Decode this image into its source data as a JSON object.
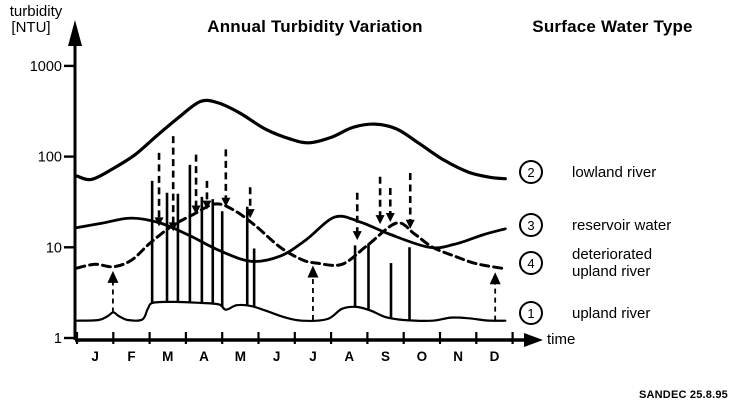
{
  "title": "Annual Turbidity Variation",
  "legend_title": "Surface Water Type",
  "credit": "SANDEC 25.8.95",
  "colors": {
    "ink": "#000000",
    "background": "#ffffff"
  },
  "y_axis": {
    "title_line1": "turbidity",
    "title_line2": "[NTU]",
    "tick_labels": [
      "1000",
      "100",
      "10",
      "1"
    ]
  },
  "x_axis": {
    "label": "time",
    "months": [
      "J",
      "F",
      "M",
      "A",
      "M",
      "J",
      "J",
      "A",
      "S",
      "O",
      "N",
      "D"
    ]
  },
  "legend": [
    {
      "number": "2",
      "label_lines": [
        "lowland river"
      ]
    },
    {
      "number": "3",
      "label_lines": [
        "reservoir water"
      ]
    },
    {
      "number": "4",
      "label_lines": [
        "deteriorated",
        "upland river"
      ]
    },
    {
      "number": "1",
      "label_lines": [
        "upland river"
      ]
    }
  ],
  "chart_data": {
    "type": "line",
    "title": "Annual Turbidity Variation",
    "xlabel": "time",
    "ylabel": "turbidity [NTU]",
    "y_scale": "log",
    "ylim": [
      1,
      1000
    ],
    "x_unit": "month (0 = start of January, 12 = end of December)",
    "series": [
      {
        "id": "2",
        "name": "lowland river",
        "style": "solid",
        "width": 3.2,
        "points": [
          [
            0,
            61
          ],
          [
            0.4,
            56
          ],
          [
            1,
            74
          ],
          [
            1.6,
            105
          ],
          [
            2.2,
            170
          ],
          [
            2.8,
            270
          ],
          [
            3.4,
            405
          ],
          [
            3.9,
            390
          ],
          [
            4.5,
            300
          ],
          [
            5.2,
            200
          ],
          [
            5.9,
            155
          ],
          [
            6.4,
            142
          ],
          [
            7,
            163
          ],
          [
            7.6,
            210
          ],
          [
            8.2,
            228
          ],
          [
            8.8,
            202
          ],
          [
            9.4,
            142
          ],
          [
            10.1,
            92
          ],
          [
            10.8,
            67
          ],
          [
            11.4,
            59
          ],
          [
            11.8,
            57
          ]
        ]
      },
      {
        "id": "3",
        "name": "reservoir water",
        "style": "solid",
        "width": 2.8,
        "points": [
          [
            0,
            16.5
          ],
          [
            0.7,
            18.5
          ],
          [
            1.5,
            21
          ],
          [
            2.3,
            18.5
          ],
          [
            3.1,
            13.5
          ],
          [
            3.9,
            9.3
          ],
          [
            4.8,
            7
          ],
          [
            5.6,
            8
          ],
          [
            6.3,
            12
          ],
          [
            7.1,
            21.5
          ],
          [
            7.8,
            19
          ],
          [
            8.6,
            14
          ],
          [
            9.7,
            10
          ],
          [
            10.4,
            10.8
          ],
          [
            11.2,
            13.8
          ],
          [
            11.8,
            16
          ]
        ]
      },
      {
        "id": "4",
        "name": "deteriorated upland river",
        "style": "dashed",
        "width": 3,
        "points": [
          [
            0,
            5.9
          ],
          [
            0.5,
            6.5
          ],
          [
            1,
            6.1
          ],
          [
            1.5,
            7.2
          ],
          [
            2,
            11
          ],
          [
            2.6,
            17
          ],
          [
            3.2,
            23
          ],
          [
            3.8,
            30
          ],
          [
            4.3,
            26
          ],
          [
            4.9,
            17.5
          ],
          [
            5.6,
            10
          ],
          [
            6.2,
            7.3
          ],
          [
            6.6,
            6.7
          ],
          [
            7.3,
            6.5
          ],
          [
            8,
            10.5
          ],
          [
            8.8,
            18.5
          ],
          [
            9.3,
            14
          ],
          [
            9.8,
            10
          ],
          [
            10.4,
            8
          ],
          [
            11,
            6.6
          ],
          [
            11.8,
            5.8
          ]
        ]
      },
      {
        "id": "1",
        "name": "upland river",
        "style": "solid",
        "width": 2.2,
        "points": [
          [
            0,
            1.55
          ],
          [
            0.6,
            1.58
          ],
          [
            0.85,
            1.75
          ],
          [
            1,
            1.92
          ],
          [
            1.15,
            1.75
          ],
          [
            1.4,
            1.58
          ],
          [
            1.8,
            1.6
          ],
          [
            1.95,
            2.1
          ],
          [
            2.1,
            2.45
          ],
          [
            2.7,
            2.5
          ],
          [
            3.3,
            2.45
          ],
          [
            3.9,
            2.35
          ],
          [
            4.1,
            2.05
          ],
          [
            4.4,
            2.3
          ],
          [
            4.8,
            2.25
          ],
          [
            5.2,
            2.0
          ],
          [
            5.7,
            1.7
          ],
          [
            6.2,
            1.55
          ],
          [
            6.9,
            1.62
          ],
          [
            7.3,
            2.1
          ],
          [
            7.7,
            2.2
          ],
          [
            8.1,
            2.0
          ],
          [
            8.5,
            1.7
          ],
          [
            9,
            1.58
          ],
          [
            9.8,
            1.55
          ],
          [
            10.3,
            1.68
          ],
          [
            10.8,
            1.65
          ],
          [
            11.3,
            1.56
          ],
          [
            11.8,
            1.55
          ]
        ]
      }
    ],
    "events": {
      "solid_spikes_note": "short-term turbidity peaks of the upland river (solid vertical lines), [month, peak NTU]",
      "solid_spikes": [
        [
          2.07,
          54
        ],
        [
          2.48,
          40
        ],
        [
          2.78,
          39
        ],
        [
          3.11,
          81
        ],
        [
          3.44,
          36
        ],
        [
          3.74,
          34
        ],
        [
          4.0,
          25
        ],
        [
          4.69,
          28
        ],
        [
          4.88,
          9.7
        ],
        [
          7.66,
          10.5
        ],
        [
          8.03,
          11
        ],
        [
          8.65,
          6.7
        ],
        [
          9.16,
          10
        ]
      ],
      "dashed_spikes_note": "short-term turbidity peaks of the deteriorated upland river (dashed vertical lines with downward arrowheads), [month, peak NTU, base NTU]",
      "dashed_spikes": [
        [
          2.26,
          110,
          17
        ],
        [
          2.65,
          168,
          15
        ],
        [
          3.28,
          105,
          23
        ],
        [
          3.58,
          54,
          26
        ],
        [
          4.1,
          120,
          28
        ],
        [
          4.77,
          46,
          21
        ],
        [
          7.72,
          40,
          12
        ],
        [
          8.35,
          60,
          18
        ],
        [
          8.63,
          45,
          19
        ],
        [
          9.18,
          66,
          16
        ]
      ],
      "up_arrows_note": "dashed upward arrows from upland river curve to deteriorated upland river curve, [month, from NTU, to NTU]",
      "up_arrows": [
        [
          0.99,
          1.95,
          5.5
        ],
        [
          6.5,
          1.6,
          6.3
        ],
        [
          11.52,
          1.62,
          5.3
        ]
      ]
    }
  }
}
